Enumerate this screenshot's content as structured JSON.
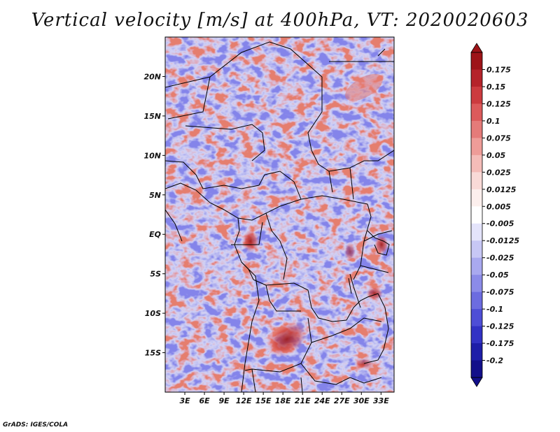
{
  "title": "Vertical velocity [m/s] at 400hPa, VT: 2020020603",
  "footer": "GrADS: IGES/COLA",
  "map": {
    "lat_range": [
      -20,
      25
    ],
    "lon_range": [
      0,
      35
    ],
    "lat_labels": [
      {
        "lat": 20,
        "text": "20N"
      },
      {
        "lat": 15,
        "text": "15N"
      },
      {
        "lat": 10,
        "text": "10N"
      },
      {
        "lat": 5,
        "text": "5N"
      },
      {
        "lat": 0,
        "text": "EQ"
      },
      {
        "lat": -5,
        "text": "5S"
      },
      {
        "lat": -10,
        "text": "10S"
      },
      {
        "lat": -15,
        "text": "15S"
      }
    ],
    "lon_labels": [
      {
        "lon": 3,
        "text": "3E"
      },
      {
        "lon": 6,
        "text": "6E"
      },
      {
        "lon": 9,
        "text": "9E"
      },
      {
        "lon": 12,
        "text": "12E"
      },
      {
        "lon": 15,
        "text": "15E"
      },
      {
        "lon": 18,
        "text": "18E"
      },
      {
        "lon": 21,
        "text": "21E"
      },
      {
        "lon": 24,
        "text": "24E"
      },
      {
        "lon": 27,
        "text": "27E"
      },
      {
        "lon": 30,
        "text": "30E"
      },
      {
        "lon": 33,
        "text": "33E"
      }
    ]
  },
  "colorbar": {
    "labels": [
      "0.175",
      "0.15",
      "0.125",
      "0.1",
      "0.075",
      "0.05",
      "0.025",
      "0.0125",
      "0.005",
      "-0.005",
      "-0.0125",
      "-0.025",
      "-0.05",
      "-0.075",
      "-0.1",
      "-0.125",
      "-0.175",
      "-0.2"
    ],
    "colors": [
      "#9e1418",
      "#b5232a",
      "#cc3b3f",
      "#dc5a5b",
      "#e57b79",
      "#ee9c98",
      "#f4bcb8",
      "#f9dad7",
      "#fcefed",
      "#ffffff",
      "#e4e4fb",
      "#c7c7f5",
      "#a9a9ef",
      "#8b8be8",
      "#6c6ce0",
      "#4e4ed6",
      "#3232c4",
      "#1e1ea8",
      "#120f8a"
    ]
  },
  "colors": {
    "positive": "#d94545",
    "negative": "#5a5ae0",
    "border": "#000000"
  }
}
